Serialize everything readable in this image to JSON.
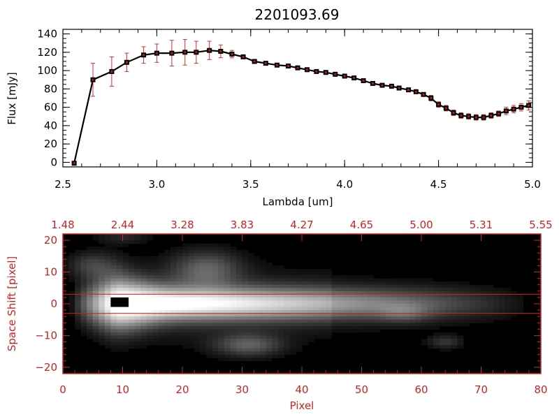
{
  "title": "2201093.69",
  "colors": {
    "black": "#000000",
    "red": "#cc2222",
    "errbar": "#d03030"
  },
  "chart_data": [
    {
      "type": "line",
      "xlabel": "Lambda [um]",
      "ylabel": "Flux [mJy]",
      "xlim": [
        2.5,
        5.0
      ],
      "ylim": [
        -5,
        145
      ],
      "xticks": [
        2.5,
        3.0,
        3.5,
        4.0,
        4.5,
        5.0
      ],
      "xtick_labels": [
        "2.5",
        "3.0",
        "3.5",
        "4.0",
        "4.5",
        "5.0"
      ],
      "yticks": [
        0,
        20,
        40,
        60,
        80,
        100,
        120,
        140
      ],
      "ytick_labels": [
        "0",
        "20",
        "40",
        "60",
        "80",
        "100",
        "120",
        "140"
      ],
      "x": [
        2.56,
        2.66,
        2.76,
        2.84,
        2.93,
        3.0,
        3.08,
        3.15,
        3.21,
        3.28,
        3.34,
        3.4,
        3.46,
        3.52,
        3.58,
        3.64,
        3.7,
        3.75,
        3.8,
        3.85,
        3.9,
        3.95,
        4.0,
        4.05,
        4.1,
        4.15,
        4.2,
        4.25,
        4.29,
        4.34,
        4.38,
        4.42,
        4.46,
        4.5,
        4.54,
        4.58,
        4.62,
        4.66,
        4.7,
        4.74,
        4.78,
        4.82,
        4.86,
        4.9,
        4.94,
        4.98
      ],
      "y": [
        -1,
        90,
        99,
        109,
        117,
        119,
        119,
        120,
        120,
        122,
        121,
        118,
        115,
        110,
        108,
        106,
        105,
        103,
        101,
        99,
        98,
        96,
        94,
        92,
        89,
        86,
        84,
        83,
        81,
        79,
        77,
        74,
        70,
        63,
        59,
        54,
        51,
        50,
        49,
        49,
        51,
        53,
        56,
        58,
        60,
        62
      ],
      "yerr": [
        0,
        18,
        16,
        10,
        9,
        10,
        14,
        14,
        12,
        10,
        7,
        4,
        2,
        2,
        2,
        2,
        2,
        2,
        2,
        2,
        2,
        2,
        2,
        2,
        2,
        2,
        2,
        2,
        2,
        2,
        2,
        2,
        3,
        3,
        3,
        3,
        3,
        3,
        3,
        3,
        3,
        3,
        4,
        4,
        4,
        5
      ]
    },
    {
      "type": "heatmap",
      "xlabel": "Pixel",
      "ylabel": "Space Shift [pixel]",
      "xlim": [
        0,
        80
      ],
      "ylim": [
        -22,
        22
      ],
      "xticks": [
        0,
        10,
        20,
        30,
        40,
        50,
        60,
        70,
        80
      ],
      "xtick_labels": [
        "0",
        "10",
        "20",
        "30",
        "40",
        "50",
        "60",
        "70",
        "80"
      ],
      "top_axis_labels": [
        "1.48",
        "2.44",
        "3.28",
        "3.83",
        "4.27",
        "4.65",
        "5.00",
        "5.31",
        "5.55"
      ],
      "yticks": [
        -20,
        -10,
        0,
        10,
        20
      ],
      "ytick_labels": [
        "−20",
        "−10",
        "0",
        "10",
        "20"
      ],
      "aperture_lines": [
        3,
        -3
      ],
      "trace": {
        "start": 3,
        "end": 76,
        "peak": 9,
        "width": 3.5
      },
      "blobs": [
        {
          "x": 24,
          "y": 11,
          "sx": 4,
          "sy": 4,
          "amp": 0.35
        },
        {
          "x": 31,
          "y": -13,
          "sx": 4,
          "sy": 2.5,
          "amp": 0.35
        },
        {
          "x": 64,
          "y": -12,
          "sx": 2,
          "sy": 1.5,
          "amp": 0.2
        },
        {
          "x": 57,
          "y": -3,
          "sx": 3,
          "sy": 2,
          "amp": 0.2
        },
        {
          "x": 10,
          "y": 21,
          "sx": 3,
          "sy": 1.5,
          "amp": 0.15
        },
        {
          "x": 5,
          "y": 12,
          "sx": 3,
          "sy": 3,
          "amp": 0.25
        }
      ],
      "masked": {
        "x": [
          8,
          11
        ],
        "y": [
          -1,
          2
        ]
      }
    }
  ]
}
